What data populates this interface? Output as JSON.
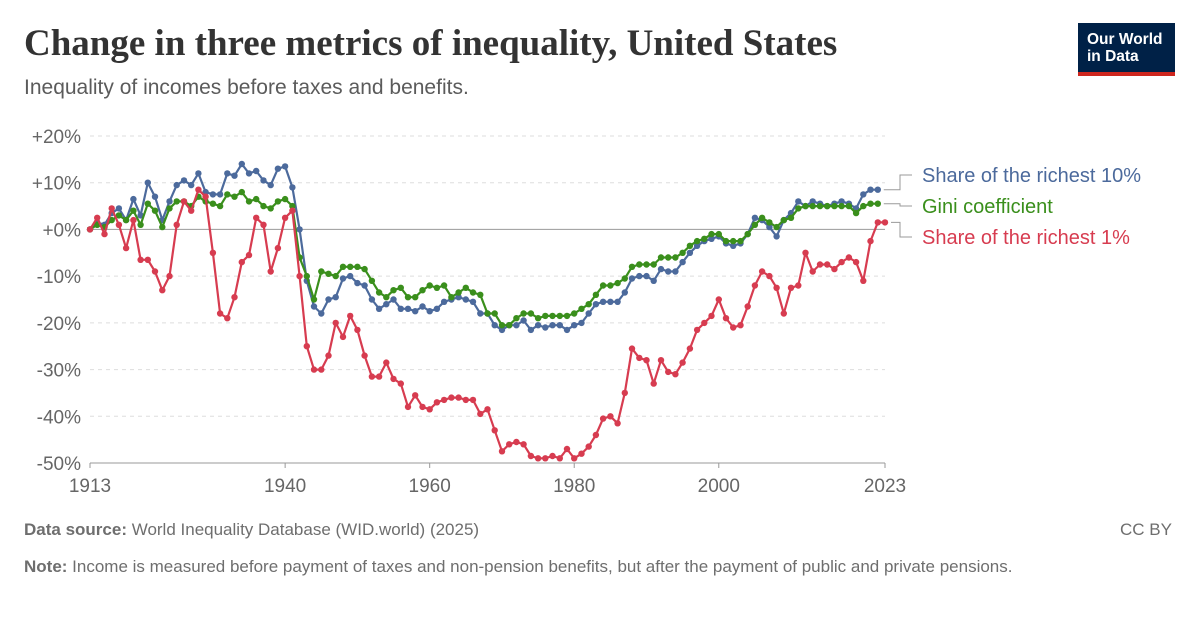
{
  "header": {
    "title": "Change in three metrics of inequality, United States",
    "subtitle": "Inequality of incomes before taxes and benefits.",
    "logo_line1": "Our World",
    "logo_line2": "in Data"
  },
  "footer": {
    "source_label": "Data source:",
    "source_text": " World Inequality Database (WID.world) (2025)",
    "license": "CC BY",
    "note_label": "Note:",
    "note_text": " Income is measured before payment of taxes and non-pension benefits, but after the payment of public and private pensions."
  },
  "chart_data": {
    "type": "line",
    "title": "Change in three metrics of inequality, United States",
    "subtitle": "Inequality of incomes before taxes and benefits.",
    "xlim": [
      1913,
      2023
    ],
    "ylim": [
      -50,
      20
    ],
    "x_ticks": [
      {
        "value": 1913,
        "label": "1913"
      },
      {
        "value": 1940,
        "label": "1940"
      },
      {
        "value": 1960,
        "label": "1960"
      },
      {
        "value": 1980,
        "label": "1980"
      },
      {
        "value": 2000,
        "label": "2000"
      },
      {
        "value": 2023,
        "label": "2023"
      }
    ],
    "y_ticks": [
      {
        "value": 20,
        "label": "+20%"
      },
      {
        "value": 10,
        "label": "+10%"
      },
      {
        "value": 0,
        "label": "+0%"
      },
      {
        "value": -10,
        "label": "-10%"
      },
      {
        "value": -20,
        "label": "-20%"
      },
      {
        "value": -30,
        "label": "-30%"
      },
      {
        "value": -40,
        "label": "-40%"
      },
      {
        "value": -50,
        "label": "-50%"
      }
    ],
    "grid": "horizontal dotted",
    "legend_placement": "right, end of lines",
    "start_year": 1913,
    "series": [
      {
        "name": "Share of the richest 10%",
        "color": "#4c6a9c",
        "values": [
          0,
          1.5,
          1,
          3.5,
          4.5,
          2,
          6.5,
          3,
          10,
          7,
          2,
          6,
          9.5,
          10.5,
          9.5,
          12,
          8,
          7.5,
          7.5,
          12,
          11.5,
          14,
          12,
          12.5,
          10.5,
          9.5,
          13,
          13.5,
          9,
          0,
          -11,
          -16.5,
          -18,
          -15,
          -14.5,
          -10.5,
          -10,
          -11.5,
          -12,
          -15,
          -17,
          -16,
          -15,
          -17,
          -17,
          -17.5,
          -16.5,
          -17.5,
          -17,
          -15.5,
          -15,
          -14.5,
          -15,
          -15.5,
          -18,
          -18,
          -20.5,
          -21.5,
          -20.5,
          -20.5,
          -19.5,
          -21.5,
          -20.5,
          -21,
          -20.5,
          -20.5,
          -21.5,
          -20.5,
          -20,
          -18,
          -16,
          -15.5,
          -15.5,
          -15.5,
          -13.5,
          -10.5,
          -10,
          -10,
          -11,
          -8.5,
          -9,
          -9,
          -7,
          -5,
          -3.5,
          -2.5,
          -2,
          -1.5,
          -3,
          -3.5,
          -3,
          -1,
          2.5,
          2,
          0.5,
          -1.5,
          2,
          3.5,
          6,
          5,
          6,
          5.5,
          5,
          5.5,
          6,
          5.5,
          4.5,
          7.5,
          8.5,
          8.5
        ]
      },
      {
        "name": "Gini coefficient",
        "color": "#3a8f1c",
        "values": [
          0,
          1,
          0.5,
          2,
          3,
          2,
          4,
          1,
          5.5,
          4,
          0.5,
          4.5,
          6,
          6,
          5,
          7,
          6,
          5.5,
          5,
          7.5,
          7,
          8,
          6,
          6.5,
          5,
          4.5,
          6,
          6.5,
          5,
          -6,
          -10,
          -15,
          -9,
          -9.5,
          -10,
          -8,
          -8,
          -8,
          -8.5,
          -11,
          -13.5,
          -14.5,
          -13,
          -12.5,
          -14.5,
          -14.5,
          -13,
          -12,
          -12.5,
          -12,
          -14.5,
          -13.5,
          -12.5,
          -13.5,
          -14,
          -18,
          -18,
          -20.5,
          -20.5,
          -19,
          -18,
          -18,
          -19,
          -18.5,
          -18.5,
          -18.5,
          -18.5,
          -18,
          -17,
          -16,
          -14,
          -12,
          -12,
          -11.5,
          -10.5,
          -8,
          -7.5,
          -7.5,
          -7.5,
          -6,
          -6,
          -6,
          -5,
          -3.5,
          -2.5,
          -2,
          -1,
          -1,
          -2.5,
          -2.5,
          -2.5,
          -1,
          1,
          2.5,
          1.5,
          0.5,
          2,
          2.5,
          4.5,
          5,
          5,
          5,
          5,
          5,
          5,
          5,
          3.5,
          5,
          5.5,
          5.5
        ]
      },
      {
        "name": "Share of the richest 1%",
        "color": "#d73c50",
        "values": [
          0,
          2.5,
          -1,
          4.5,
          1,
          -4,
          2,
          -6.5,
          -6.5,
          -9,
          -13,
          -10,
          1,
          6,
          4,
          8.5,
          7,
          -5,
          -18,
          -19,
          -14.5,
          -7,
          -5.5,
          2.5,
          1,
          -9,
          -4,
          2.5,
          4,
          -10,
          -25,
          -30,
          -30,
          -27,
          -20,
          -23,
          -18.5,
          -21.5,
          -27,
          -31.5,
          -31.5,
          -28.5,
          -32,
          -33,
          -38,
          -35.5,
          -38,
          -38.5,
          -37,
          -36.5,
          -36,
          -36,
          -36.5,
          -36.5,
          -39.5,
          -38.5,
          -43,
          -47.5,
          -46,
          -45.5,
          -46,
          -48.5,
          -49,
          -49,
          -48.5,
          -49,
          -47,
          -49,
          -48,
          -46.5,
          -44,
          -40.5,
          -40,
          -41.5,
          -35,
          -25.5,
          -27.5,
          -28,
          -33,
          -28,
          -30.5,
          -31,
          -28.5,
          -25.5,
          -21.5,
          -20,
          -18.5,
          -15,
          -19,
          -21,
          -20.5,
          -16.5,
          -12,
          -9,
          -10,
          -12.5,
          -18,
          -12.5,
          -12,
          -5,
          -9,
          -7.5,
          -7.5,
          -8.5,
          -7,
          -6,
          -7,
          -11,
          -2.5,
          1.5,
          1.5
        ]
      }
    ]
  }
}
